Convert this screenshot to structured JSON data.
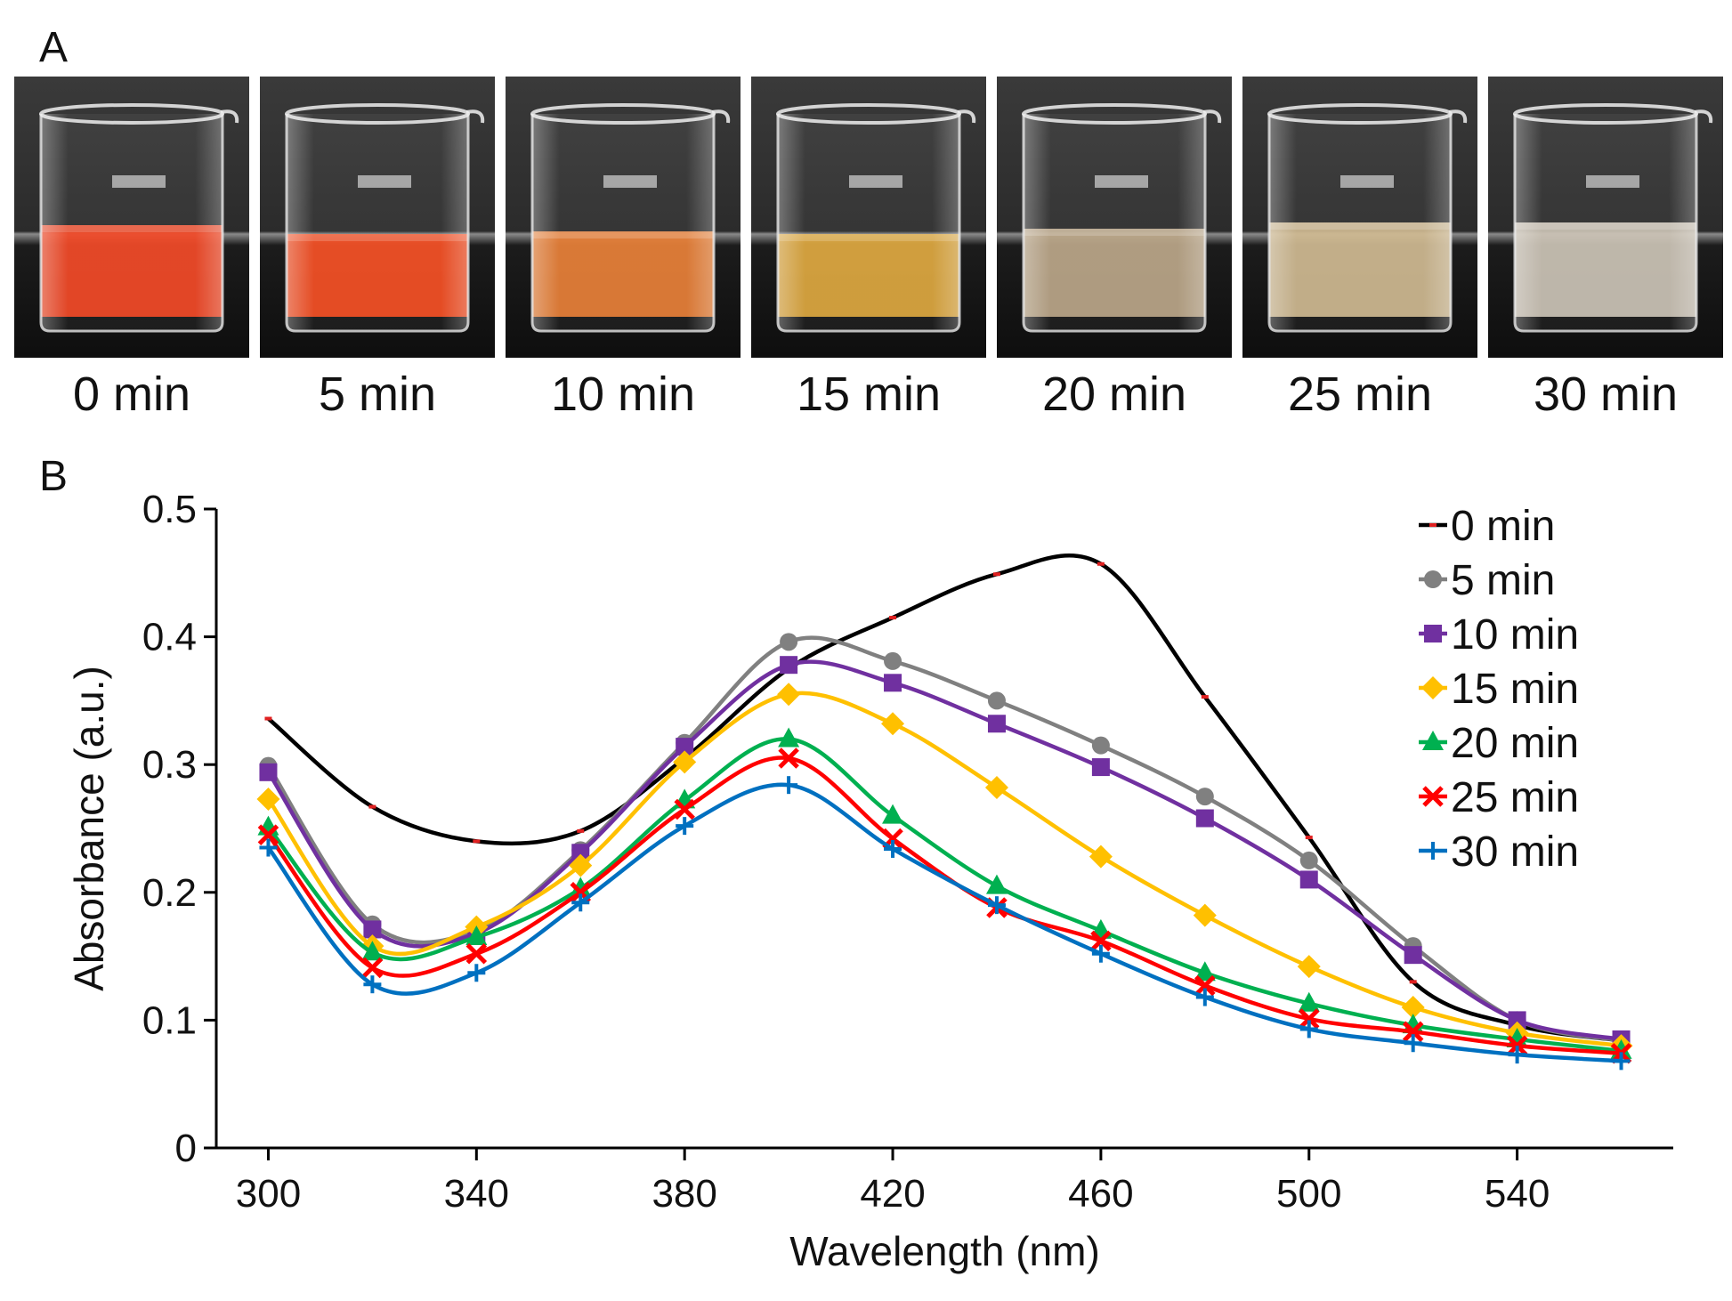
{
  "panel_a": {
    "label": "A",
    "photos": [
      {
        "time": "0 min",
        "liquid_color": "#f2401c",
        "liquid_level": 0.47
      },
      {
        "time": "5 min",
        "liquid_color": "#f5481a",
        "liquid_level": 0.44
      },
      {
        "time": "10 min",
        "liquid_color": "#e77a2e",
        "liquid_level": 0.45
      },
      {
        "time": "15 min",
        "liquid_color": "#dca436",
        "liquid_level": 0.44
      },
      {
        "time": "20 min",
        "liquid_color": "#b7a282",
        "liquid_level": 0.46
      },
      {
        "time": "25 min",
        "liquid_color": "#cdb68c",
        "liquid_level": 0.48
      },
      {
        "time": "30 min",
        "liquid_color": "#c9c0b2",
        "liquid_level": 0.48
      }
    ]
  },
  "panel_b": {
    "label": "B"
  },
  "chart_data": {
    "type": "line",
    "xlabel": "Wavelength (nm)",
    "ylabel": "Absorbance (a.u.)",
    "xlim": [
      290,
      570
    ],
    "ylim": [
      0,
      0.5
    ],
    "xticks": [
      300,
      340,
      380,
      420,
      460,
      500,
      540
    ],
    "yticks": [
      0,
      0.1,
      0.2,
      0.3,
      0.4,
      0.5
    ],
    "ytick_labels": [
      "0",
      "0.1",
      "0.2",
      "0.3",
      "0.4",
      "0.5"
    ],
    "legend_position": "top-right",
    "x": [
      300,
      320,
      340,
      360,
      380,
      400,
      420,
      440,
      460,
      480,
      500,
      520,
      540,
      560
    ],
    "series": [
      {
        "name": "0 min",
        "color": "#000000",
        "marker": "dash",
        "values": [
          0.336,
          0.267,
          0.24,
          0.248,
          0.305,
          0.375,
          0.415,
          0.449,
          0.457,
          0.353,
          0.243,
          0.13,
          0.096,
          0.084
        ]
      },
      {
        "name": "5 min",
        "color": "#808080",
        "marker": "circle",
        "values": [
          0.299,
          0.175,
          0.17,
          0.233,
          0.317,
          0.396,
          0.381,
          0.35,
          0.315,
          0.275,
          0.225,
          0.158,
          0.1,
          0.084
        ]
      },
      {
        "name": "10 min",
        "color": "#7030a0",
        "marker": "square",
        "values": [
          0.294,
          0.171,
          0.168,
          0.231,
          0.314,
          0.378,
          0.364,
          0.332,
          0.298,
          0.258,
          0.21,
          0.151,
          0.1,
          0.085
        ]
      },
      {
        "name": "15 min",
        "color": "#ffc000",
        "marker": "diamond",
        "values": [
          0.273,
          0.158,
          0.173,
          0.221,
          0.302,
          0.355,
          0.332,
          0.282,
          0.228,
          0.182,
          0.142,
          0.11,
          0.09,
          0.08
        ]
      },
      {
        "name": "20 min",
        "color": "#00b050",
        "marker": "triangle",
        "values": [
          0.251,
          0.153,
          0.165,
          0.203,
          0.272,
          0.32,
          0.26,
          0.205,
          0.17,
          0.137,
          0.113,
          0.096,
          0.085,
          0.076
        ]
      },
      {
        "name": "25 min",
        "color": "#ff0000",
        "marker": "x",
        "values": [
          0.245,
          0.141,
          0.152,
          0.2,
          0.265,
          0.305,
          0.242,
          0.188,
          0.162,
          0.127,
          0.101,
          0.091,
          0.08,
          0.074
        ]
      },
      {
        "name": "30 min",
        "color": "#0070c0",
        "marker": "plus",
        "values": [
          0.235,
          0.128,
          0.137,
          0.192,
          0.252,
          0.284,
          0.234,
          0.19,
          0.152,
          0.118,
          0.093,
          0.082,
          0.073,
          0.068
        ]
      }
    ]
  }
}
